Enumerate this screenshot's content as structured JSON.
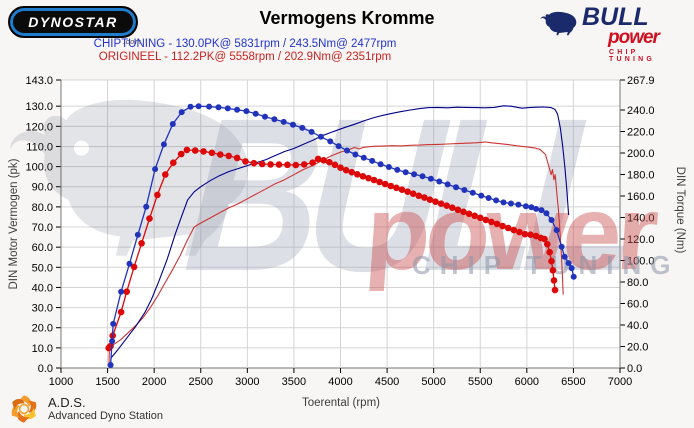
{
  "header": {
    "dynostar_text": "DYNOSTAR",
    "dynostar_sub": ".com",
    "title": "Vermogens Kromme",
    "bull_logo": {
      "line1": "BULL",
      "line2": "power",
      "line3": "CHIP TUNING"
    }
  },
  "legend": [
    {
      "name": "CHIPTUNING",
      "text": "CHIPTUNING  - 130.0PK@ 5831rpm / 243.5Nm@ 2477rpm",
      "color": "#2233cc"
    },
    {
      "name": "ORIGINEEL",
      "text": "ORIGINEEL  - 112.2PK@ 5558rpm / 202.9Nm@ 2351rpm",
      "color": "#cc2222"
    }
  ],
  "watermark": {
    "bull": "BULL",
    "power": "power",
    "chip_tuning": "CHIP TUNING"
  },
  "footer": {
    "ads_title": "A.D.S.",
    "ads_subtitle": "Advanced Dyno Station"
  },
  "chart_data": {
    "type": "line",
    "title": "Vermogens Kromme",
    "xlabel": "Toerental (rpm)",
    "ylabel_left": "DIN Motor Vermogen (pk)",
    "ylabel_right": "DIN Torque (Nm)",
    "xlim": [
      1000,
      7000
    ],
    "left_max": 143.0,
    "right_max": 267.9,
    "grid": true,
    "x_ticks": [
      "1000",
      "1500",
      "2000",
      "2500",
      "3000",
      "3500",
      "4000",
      "4500",
      "5000",
      "5500",
      "6000",
      "6500",
      "7000"
    ],
    "left_ticks": [
      "143.0",
      "130.0",
      "120.0",
      "110.0",
      "100.0",
      "90.0",
      "80.0",
      "70.0",
      "60.0",
      "50.0",
      "40.0",
      "30.0",
      "20.0",
      "10.0",
      "0.0"
    ],
    "right_ticks": [
      "267.9",
      "240.0",
      "220.0",
      "200.0",
      "180.0",
      "160.0",
      "140.0",
      "120.0",
      "100.0",
      "80.0",
      "60.0",
      "40.0",
      "20.0",
      "0.0"
    ],
    "peaks": {
      "chiptuning_power": "130.0PK@ 5831rpm",
      "chiptuning_torque": "243.5Nm@ 2477rpm",
      "origineel_power": "112.2PK@ 5558rpm",
      "origineel_torque": "202.9Nm@ 2351rpm"
    },
    "series": [
      {
        "name": "origineel_power_pk",
        "axis": "left",
        "color": "#cc3333",
        "width": 1.1,
        "markers": false,
        "points": [
          [
            1515,
            2
          ],
          [
            1520,
            9.5
          ],
          [
            1560,
            11.5
          ],
          [
            1640,
            14
          ],
          [
            1720,
            17.5
          ],
          [
            1800,
            21
          ],
          [
            1880,
            25
          ],
          [
            1960,
            30
          ],
          [
            2040,
            36
          ],
          [
            2120,
            42.5
          ],
          [
            2200,
            49
          ],
          [
            2280,
            56
          ],
          [
            2351,
            63
          ],
          [
            2430,
            70
          ],
          [
            2500,
            72
          ],
          [
            2600,
            74.5
          ],
          [
            2700,
            77
          ],
          [
            2800,
            79.5
          ],
          [
            2900,
            81.5
          ],
          [
            3000,
            84
          ],
          [
            3100,
            86.5
          ],
          [
            3200,
            89
          ],
          [
            3300,
            91.5
          ],
          [
            3400,
            93.5
          ],
          [
            3500,
            96
          ],
          [
            3600,
            98.5
          ],
          [
            3700,
            100.5
          ],
          [
            3800,
            103
          ],
          [
            3900,
            105.3
          ],
          [
            4000,
            107.2
          ],
          [
            4100,
            108.6
          ],
          [
            4150,
            109.5
          ],
          [
            4200,
            108.8
          ],
          [
            4250,
            109.6
          ],
          [
            4350,
            110.1
          ],
          [
            4450,
            110.2
          ],
          [
            4550,
            110.4
          ],
          [
            4650,
            110.3
          ],
          [
            4750,
            110.6
          ],
          [
            4850,
            110.7
          ],
          [
            4950,
            110.9
          ],
          [
            5050,
            111
          ],
          [
            5150,
            111.2
          ],
          [
            5250,
            111.4
          ],
          [
            5350,
            111.6
          ],
          [
            5450,
            111.8
          ],
          [
            5500,
            112
          ],
          [
            5558,
            112.2
          ],
          [
            5620,
            111.8
          ],
          [
            5700,
            111.4
          ],
          [
            5800,
            110.9
          ],
          [
            5900,
            110.3
          ],
          [
            6000,
            109.8
          ],
          [
            6080,
            109.3
          ],
          [
            6140,
            108.6
          ],
          [
            6200,
            106
          ],
          [
            6240,
            99.5
          ],
          [
            6260,
            96
          ],
          [
            6275,
            98.5
          ],
          [
            6290,
            93.5
          ],
          [
            6305,
            96
          ],
          [
            6320,
            88
          ],
          [
            6340,
            78
          ],
          [
            6355,
            68
          ],
          [
            6370,
            57
          ],
          [
            6382,
            46
          ],
          [
            6390,
            36.5
          ]
        ]
      },
      {
        "name": "chiptuning_power_pk",
        "axis": "left",
        "color": "#00008b",
        "width": 1.1,
        "markers": false,
        "points": [
          [
            1532,
            1
          ],
          [
            1538,
            5
          ],
          [
            1600,
            8.5
          ],
          [
            1700,
            14.5
          ],
          [
            1800,
            20.5
          ],
          [
            1900,
            27.5
          ],
          [
            1970,
            34
          ],
          [
            2050,
            43
          ],
          [
            2140,
            54
          ],
          [
            2230,
            67
          ],
          [
            2300,
            76
          ],
          [
            2360,
            83.5
          ],
          [
            2430,
            87.5
          ],
          [
            2500,
            90
          ],
          [
            2600,
            93
          ],
          [
            2700,
            95.5
          ],
          [
            2800,
            97.5
          ],
          [
            2900,
            99
          ],
          [
            3000,
            100.5
          ],
          [
            3100,
            102
          ],
          [
            3200,
            103.5
          ],
          [
            3300,
            105.5
          ],
          [
            3400,
            107.5
          ],
          [
            3500,
            109
          ],
          [
            3600,
            111
          ],
          [
            3700,
            113
          ],
          [
            3800,
            115.3
          ],
          [
            3900,
            117
          ],
          [
            3960,
            118
          ],
          [
            4050,
            119.5
          ],
          [
            4150,
            121
          ],
          [
            4250,
            122.7
          ],
          [
            4350,
            124.2
          ],
          [
            4450,
            125.4
          ],
          [
            4550,
            126.4
          ],
          [
            4650,
            127.3
          ],
          [
            4750,
            128.1
          ],
          [
            4850,
            128.8
          ],
          [
            4950,
            129.3
          ],
          [
            5050,
            129.4
          ],
          [
            5150,
            129.2
          ],
          [
            5250,
            129.5
          ],
          [
            5350,
            129.4
          ],
          [
            5450,
            129.3
          ],
          [
            5550,
            129.2
          ],
          [
            5650,
            129.4
          ],
          [
            5750,
            130.2
          ],
          [
            5831,
            130
          ],
          [
            5900,
            129.4
          ],
          [
            5950,
            129
          ],
          [
            6020,
            129.3
          ],
          [
            6100,
            129.5
          ],
          [
            6180,
            129.6
          ],
          [
            6260,
            129.3
          ],
          [
            6300,
            128.5
          ],
          [
            6330,
            126
          ],
          [
            6360,
            119
          ],
          [
            6385,
            110
          ],
          [
            6410,
            99
          ],
          [
            6430,
            88
          ],
          [
            6448,
            76
          ]
        ]
      },
      {
        "name": "origineel_torque_nm",
        "axis": "right",
        "color": "#dd0808",
        "width": 1.3,
        "markers": true,
        "marker_r": 3.3,
        "points": [
          [
            1512,
            18.5
          ],
          [
            1522,
            19.5
          ],
          [
            1532,
            20.5
          ],
          [
            1555,
            30
          ],
          [
            1645,
            52
          ],
          [
            1705,
            71
          ],
          [
            1785,
            94
          ],
          [
            1865,
            116
          ],
          [
            1950,
            139
          ],
          [
            2035,
            161
          ],
          [
            2120,
            180
          ],
          [
            2205,
            191
          ],
          [
            2290,
            199
          ],
          [
            2351,
            202.9
          ],
          [
            2440,
            202.3
          ],
          [
            2530,
            201.5
          ],
          [
            2620,
            200.2
          ],
          [
            2710,
            198.5
          ],
          [
            2800,
            197.3
          ],
          [
            2890,
            195.4
          ],
          [
            2980,
            192.2
          ],
          [
            3070,
            190.5
          ],
          [
            3160,
            189.8
          ],
          [
            3250,
            189.4
          ],
          [
            3340,
            189.2
          ],
          [
            3430,
            189
          ],
          [
            3520,
            188.8
          ],
          [
            3610,
            189.4
          ],
          [
            3700,
            191
          ],
          [
            3760,
            194.5
          ],
          [
            3820,
            193.2
          ],
          [
            3880,
            191.4
          ],
          [
            3940,
            189
          ],
          [
            4000,
            186.3
          ],
          [
            4060,
            184
          ],
          [
            4120,
            182.1
          ],
          [
            4180,
            180.2
          ],
          [
            4240,
            178.3
          ],
          [
            4300,
            176.6
          ],
          [
            4360,
            174.9
          ],
          [
            4420,
            173
          ],
          [
            4480,
            171.2
          ],
          [
            4540,
            169.3
          ],
          [
            4600,
            167.6
          ],
          [
            4660,
            165.9
          ],
          [
            4720,
            164
          ],
          [
            4780,
            162.1
          ],
          [
            4840,
            160.2
          ],
          [
            4900,
            158.5
          ],
          [
            4960,
            156.6
          ],
          [
            5020,
            154.7
          ],
          [
            5080,
            152.8
          ],
          [
            5140,
            151
          ],
          [
            5200,
            149.1
          ],
          [
            5260,
            147.2
          ],
          [
            5320,
            145.3
          ],
          [
            5380,
            143.4
          ],
          [
            5440,
            141.6
          ],
          [
            5500,
            139.7
          ],
          [
            5560,
            137.8
          ],
          [
            5620,
            135.9
          ],
          [
            5680,
            134
          ],
          [
            5740,
            132.1
          ],
          [
            5800,
            130.2
          ],
          [
            5860,
            128.3
          ],
          [
            5920,
            126.4
          ],
          [
            5980,
            124.5
          ],
          [
            6040,
            124
          ],
          [
            6100,
            122.7
          ],
          [
            6150,
            121
          ],
          [
            6190,
            119.9
          ],
          [
            6220,
            115.2
          ],
          [
            6245,
            107.7
          ],
          [
            6265,
            99.3
          ],
          [
            6280,
            90.9
          ],
          [
            6292,
            81.5
          ],
          [
            6302,
            72.5
          ]
        ]
      },
      {
        "name": "chiptuning_torque_nm",
        "axis": "right",
        "color": "#2233bb",
        "width": 1.3,
        "markers": true,
        "marker_r": 3.0,
        "points": [
          [
            1532,
            2.8
          ],
          [
            1548,
            25
          ],
          [
            1560,
            41
          ],
          [
            1645,
            71
          ],
          [
            1735,
            97
          ],
          [
            1825,
            124
          ],
          [
            1915,
            150
          ],
          [
            2010,
            185
          ],
          [
            2105,
            208
          ],
          [
            2200,
            227
          ],
          [
            2295,
            238
          ],
          [
            2390,
            243
          ],
          [
            2477,
            243.5
          ],
          [
            2590,
            243.2
          ],
          [
            2690,
            242.5
          ],
          [
            2790,
            241.5
          ],
          [
            2890,
            240.2
          ],
          [
            2990,
            239
          ],
          [
            3090,
            236.5
          ],
          [
            3190,
            233.8
          ],
          [
            3290,
            231.4
          ],
          [
            3390,
            228.9
          ],
          [
            3490,
            226.3
          ],
          [
            3590,
            223.3
          ],
          [
            3690,
            219.6
          ],
          [
            3790,
            215.1
          ],
          [
            3890,
            210.8
          ],
          [
            3980,
            206.4
          ],
          [
            4070,
            202.3
          ],
          [
            4160,
            198.6
          ],
          [
            4250,
            195.6
          ],
          [
            4340,
            192.6
          ],
          [
            4430,
            189.6
          ],
          [
            4520,
            187
          ],
          [
            4610,
            184.3
          ],
          [
            4700,
            182.1
          ],
          [
            4790,
            180.2
          ],
          [
            4880,
            178.3
          ],
          [
            4970,
            176.1
          ],
          [
            5060,
            173.5
          ],
          [
            5150,
            170.8
          ],
          [
            5240,
            168.2
          ],
          [
            5330,
            165.6
          ],
          [
            5420,
            163
          ],
          [
            5510,
            160.4
          ],
          [
            5590,
            158.1
          ],
          [
            5670,
            155.9
          ],
          [
            5750,
            154
          ],
          [
            5830,
            153
          ],
          [
            5910,
            152
          ],
          [
            5990,
            150.5
          ],
          [
            6049,
            149.5
          ],
          [
            6100,
            148
          ],
          [
            6157,
            146.9
          ],
          [
            6210,
            144
          ],
          [
            6265,
            137.7
          ],
          [
            6319,
            128.3
          ],
          [
            6373,
            112.8
          ],
          [
            6405,
            103.4
          ],
          [
            6448,
            97.6
          ],
          [
            6481,
            92.9
          ],
          [
            6503,
            84.9
          ]
        ]
      }
    ]
  }
}
